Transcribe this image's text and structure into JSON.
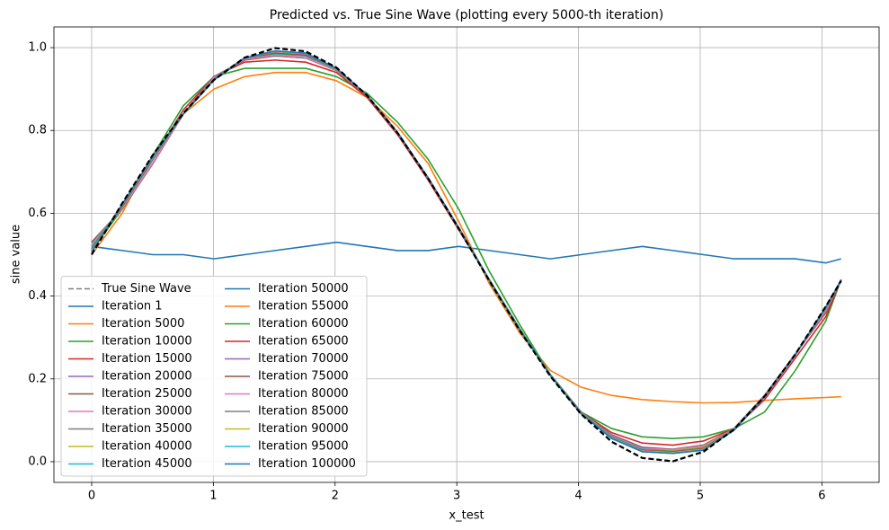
{
  "chart_data": {
    "type": "line",
    "title": "Predicted vs. True Sine Wave (plotting every 5000-th iteration)",
    "x_label": "x_test",
    "y_label": "sine value",
    "x": [
      0,
      0.251,
      0.503,
      0.754,
      1.005,
      1.257,
      1.508,
      1.759,
      2.011,
      2.262,
      2.513,
      2.765,
      3.016,
      3.267,
      3.519,
      3.77,
      4.021,
      4.273,
      4.524,
      4.775,
      5.027,
      5.278,
      5.529,
      5.781,
      6.032,
      6.158
    ],
    "xlim": [
      -0.31,
      6.47
    ],
    "xticks": [
      0,
      1,
      2,
      3,
      4,
      5,
      6
    ],
    "ylim": [
      -0.05,
      1.05
    ],
    "yticks": [
      {
        "value": 0,
        "label": "0.0"
      },
      {
        "value": 0.2,
        "label": "0.2"
      },
      {
        "value": 0.4,
        "label": "0.4"
      },
      {
        "value": 0.6,
        "label": "0.6"
      },
      {
        "value": 0.8,
        "label": "0.8"
      },
      {
        "value": 1,
        "label": "1.0"
      }
    ],
    "grid": true,
    "legend": "lower left",
    "legend_columns": 2,
    "series": [
      {
        "name": "True Sine Wave",
        "color": "#000000",
        "style": "dashed",
        "values": [
          0.5,
          0.624,
          0.741,
          0.842,
          0.922,
          0.976,
          0.999,
          0.991,
          0.952,
          0.885,
          0.794,
          0.684,
          0.563,
          0.437,
          0.316,
          0.206,
          0.115,
          0.048,
          0.009,
          0.001,
          0.024,
          0.078,
          0.158,
          0.259,
          0.375,
          0.437
        ]
      },
      {
        "name": "Iteration 1",
        "color": "#1f77b4",
        "values": [
          0.52,
          0.51,
          0.5,
          0.5,
          0.49,
          0.5,
          0.51,
          0.52,
          0.53,
          0.52,
          0.51,
          0.51,
          0.52,
          0.51,
          0.5,
          0.49,
          0.5,
          0.51,
          0.52,
          0.51,
          0.5,
          0.49,
          0.49,
          0.49,
          0.48,
          0.49
        ]
      },
      {
        "name": "Iteration 5000",
        "color": "#ff7f0e",
        "values": [
          0.5,
          0.6,
          0.74,
          0.84,
          0.9,
          0.93,
          0.94,
          0.94,
          0.92,
          0.88,
          0.81,
          0.72,
          0.58,
          0.43,
          0.31,
          0.22,
          0.18,
          0.16,
          0.15,
          0.145,
          0.142,
          0.143,
          0.148,
          0.152,
          0.155,
          0.157
        ]
      },
      {
        "name": "Iteration 10000",
        "color": "#2ca02c",
        "values": [
          0.51,
          0.61,
          0.74,
          0.86,
          0.93,
          0.95,
          0.95,
          0.95,
          0.93,
          0.89,
          0.82,
          0.73,
          0.61,
          0.46,
          0.33,
          0.21,
          0.12,
          0.08,
          0.06,
          0.056,
          0.06,
          0.08,
          0.12,
          0.22,
          0.34,
          0.44
        ]
      },
      {
        "name": "Iteration 15000",
        "color": "#d62728",
        "values": [
          0.53,
          0.61,
          0.73,
          0.85,
          0.93,
          0.965,
          0.97,
          0.965,
          0.94,
          0.88,
          0.79,
          0.68,
          0.56,
          0.44,
          0.32,
          0.21,
          0.12,
          0.07,
          0.045,
          0.04,
          0.05,
          0.08,
          0.15,
          0.25,
          0.35,
          0.44
        ]
      },
      {
        "name": "Iteration 20000",
        "color": "#9467bd",
        "values": [
          0.53,
          0.61,
          0.72,
          0.84,
          0.93,
          0.97,
          0.98,
          0.975,
          0.945,
          0.885,
          0.795,
          0.685,
          0.565,
          0.44,
          0.32,
          0.21,
          0.12,
          0.065,
          0.035,
          0.03,
          0.04,
          0.08,
          0.16,
          0.26,
          0.36,
          0.44
        ]
      },
      {
        "name": "Iteration 25000",
        "color": "#8c564b",
        "values": [
          0.53,
          0.61,
          0.72,
          0.84,
          0.93,
          0.97,
          0.98,
          0.975,
          0.945,
          0.885,
          0.795,
          0.685,
          0.565,
          0.44,
          0.32,
          0.21,
          0.12,
          0.064,
          0.034,
          0.03,
          0.04,
          0.08,
          0.16,
          0.26,
          0.36,
          0.44
        ]
      },
      {
        "name": "Iteration 30000",
        "color": "#e377c2",
        "values": [
          0.525,
          0.612,
          0.722,
          0.84,
          0.928,
          0.972,
          0.982,
          0.976,
          0.946,
          0.885,
          0.795,
          0.685,
          0.565,
          0.44,
          0.32,
          0.21,
          0.119,
          0.062,
          0.032,
          0.029,
          0.038,
          0.079,
          0.159,
          0.259,
          0.365,
          0.44
        ]
      },
      {
        "name": "Iteration 35000",
        "color": "#7f7f7f",
        "values": [
          0.52,
          0.615,
          0.73,
          0.84,
          0.925,
          0.975,
          0.985,
          0.98,
          0.948,
          0.885,
          0.795,
          0.685,
          0.565,
          0.44,
          0.32,
          0.21,
          0.118,
          0.06,
          0.03,
          0.027,
          0.035,
          0.078,
          0.158,
          0.258,
          0.37,
          0.44
        ]
      },
      {
        "name": "Iteration 40000",
        "color": "#bcbd22",
        "values": [
          0.52,
          0.615,
          0.73,
          0.84,
          0.925,
          0.975,
          0.985,
          0.98,
          0.948,
          0.885,
          0.795,
          0.685,
          0.565,
          0.44,
          0.32,
          0.21,
          0.118,
          0.06,
          0.03,
          0.027,
          0.035,
          0.078,
          0.158,
          0.258,
          0.37,
          0.44
        ]
      },
      {
        "name": "Iteration 45000",
        "color": "#17becf",
        "values": [
          0.52,
          0.615,
          0.73,
          0.84,
          0.925,
          0.975,
          0.985,
          0.98,
          0.948,
          0.885,
          0.795,
          0.685,
          0.565,
          0.44,
          0.32,
          0.21,
          0.118,
          0.06,
          0.03,
          0.026,
          0.034,
          0.078,
          0.158,
          0.258,
          0.37,
          0.44
        ]
      },
      {
        "name": "Iteration 50000",
        "color": "#1f77b4",
        "values": [
          0.515,
          0.617,
          0.732,
          0.84,
          0.924,
          0.975,
          0.987,
          0.982,
          0.949,
          0.885,
          0.795,
          0.685,
          0.565,
          0.439,
          0.319,
          0.209,
          0.117,
          0.059,
          0.028,
          0.025,
          0.033,
          0.077,
          0.158,
          0.258,
          0.371,
          0.439
        ]
      },
      {
        "name": "Iteration 55000",
        "color": "#ff7f0e",
        "values": [
          0.515,
          0.617,
          0.732,
          0.84,
          0.924,
          0.975,
          0.987,
          0.982,
          0.949,
          0.885,
          0.795,
          0.685,
          0.565,
          0.439,
          0.319,
          0.209,
          0.117,
          0.059,
          0.028,
          0.025,
          0.033,
          0.077,
          0.158,
          0.258,
          0.371,
          0.439
        ]
      },
      {
        "name": "Iteration 60000",
        "color": "#2ca02c",
        "values": [
          0.515,
          0.617,
          0.732,
          0.84,
          0.924,
          0.975,
          0.987,
          0.982,
          0.949,
          0.885,
          0.795,
          0.685,
          0.565,
          0.439,
          0.319,
          0.209,
          0.117,
          0.059,
          0.028,
          0.024,
          0.032,
          0.077,
          0.158,
          0.258,
          0.371,
          0.439
        ]
      },
      {
        "name": "Iteration 65000",
        "color": "#d62728",
        "values": [
          0.512,
          0.618,
          0.733,
          0.84,
          0.923,
          0.975,
          0.988,
          0.983,
          0.95,
          0.885,
          0.795,
          0.685,
          0.565,
          0.438,
          0.318,
          0.208,
          0.116,
          0.058,
          0.027,
          0.023,
          0.031,
          0.076,
          0.157,
          0.258,
          0.372,
          0.438
        ]
      },
      {
        "name": "Iteration 70000",
        "color": "#9467bd",
        "values": [
          0.51,
          0.62,
          0.735,
          0.84,
          0.922,
          0.975,
          0.99,
          0.985,
          0.95,
          0.885,
          0.795,
          0.685,
          0.565,
          0.438,
          0.318,
          0.208,
          0.116,
          0.058,
          0.026,
          0.022,
          0.03,
          0.076,
          0.157,
          0.258,
          0.372,
          0.437
        ]
      },
      {
        "name": "Iteration 75000",
        "color": "#8c564b",
        "values": [
          0.51,
          0.62,
          0.735,
          0.84,
          0.922,
          0.975,
          0.99,
          0.985,
          0.95,
          0.885,
          0.795,
          0.685,
          0.565,
          0.438,
          0.318,
          0.208,
          0.116,
          0.058,
          0.026,
          0.022,
          0.03,
          0.076,
          0.157,
          0.258,
          0.372,
          0.437
        ]
      },
      {
        "name": "Iteration 80000",
        "color": "#e377c2",
        "values": [
          0.51,
          0.62,
          0.735,
          0.84,
          0.922,
          0.975,
          0.99,
          0.985,
          0.95,
          0.885,
          0.795,
          0.685,
          0.565,
          0.438,
          0.318,
          0.208,
          0.116,
          0.058,
          0.026,
          0.022,
          0.03,
          0.076,
          0.157,
          0.258,
          0.372,
          0.437
        ]
      },
      {
        "name": "Iteration 85000",
        "color": "#7f7f7f",
        "values": [
          0.508,
          0.621,
          0.736,
          0.84,
          0.922,
          0.975,
          0.991,
          0.986,
          0.95,
          0.885,
          0.795,
          0.685,
          0.565,
          0.438,
          0.318,
          0.208,
          0.116,
          0.057,
          0.025,
          0.021,
          0.029,
          0.076,
          0.157,
          0.258,
          0.373,
          0.437
        ]
      },
      {
        "name": "Iteration 90000",
        "color": "#bcbd22",
        "values": [
          0.508,
          0.621,
          0.736,
          0.84,
          0.922,
          0.975,
          0.991,
          0.986,
          0.95,
          0.885,
          0.795,
          0.685,
          0.565,
          0.438,
          0.318,
          0.208,
          0.116,
          0.057,
          0.025,
          0.021,
          0.029,
          0.076,
          0.157,
          0.258,
          0.373,
          0.437
        ]
      },
      {
        "name": "Iteration 95000",
        "color": "#17becf",
        "values": [
          0.507,
          0.622,
          0.737,
          0.84,
          0.922,
          0.975,
          0.992,
          0.986,
          0.95,
          0.885,
          0.795,
          0.685,
          0.565,
          0.438,
          0.318,
          0.208,
          0.116,
          0.057,
          0.024,
          0.02,
          0.028,
          0.076,
          0.157,
          0.258,
          0.373,
          0.437
        ]
      },
      {
        "name": "Iteration 100000",
        "color": "#1f77b4",
        "values": [
          0.506,
          0.622,
          0.738,
          0.84,
          0.922,
          0.975,
          0.992,
          0.987,
          0.95,
          0.885,
          0.795,
          0.685,
          0.565,
          0.438,
          0.318,
          0.208,
          0.116,
          0.056,
          0.024,
          0.02,
          0.028,
          0.076,
          0.157,
          0.258,
          0.374,
          0.437
        ]
      }
    ]
  }
}
